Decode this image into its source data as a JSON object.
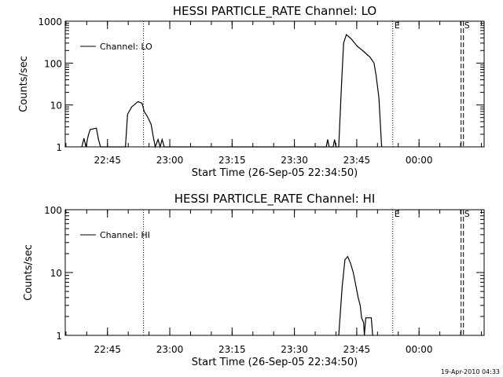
{
  "timestamp": "19-Apr-2010 04:33",
  "chart_data": [
    {
      "type": "line",
      "title": "HESSI PARTICLE_RATE Channel: LO",
      "xlabel": "Start Time (26-Sep-05 22:34:50)",
      "ylabel": "Counts/sec",
      "yscale": "log",
      "ylim": [
        1,
        1000
      ],
      "y_ticks": [
        1,
        10,
        100,
        1000
      ],
      "xlim": [
        "22:34:50",
        "00:15:40"
      ],
      "x_ticks": [
        "22:45",
        "23:00",
        "23:15",
        "23:30",
        "23:45",
        "00:00"
      ],
      "legend": "top-left",
      "series": [
        {
          "name": "Channel: LO",
          "points": [
            [
              "22:38:50",
              1
            ],
            [
              "22:39:20",
              1.6
            ],
            [
              "22:39:50",
              1
            ],
            [
              "22:40:20",
              1.8
            ],
            [
              "22:40:50",
              2.6
            ],
            [
              "22:42:20",
              2.8
            ],
            [
              "22:42:50",
              1.5
            ],
            [
              "22:43:20",
              1
            ],
            [
              "22:49:20",
              1
            ],
            [
              "22:49:50",
              6
            ],
            [
              "22:50:50",
              9
            ],
            [
              "22:52:20",
              12
            ],
            [
              "22:53:20",
              11
            ],
            [
              "22:53:50",
              7
            ],
            [
              "22:54:30",
              5.5
            ],
            [
              "22:55:30",
              3.5
            ],
            [
              "22:56:00",
              1.8
            ],
            [
              "22:56:30",
              1
            ],
            [
              "22:57:10",
              1.5
            ],
            [
              "22:57:40",
              1
            ],
            [
              "22:58:10",
              1.5
            ],
            [
              "22:58:40",
              1
            ],
            [
              "23:37:40",
              1
            ],
            [
              "23:38:00",
              1.5
            ],
            [
              "23:38:20",
              1
            ],
            [
              "23:39:20",
              1
            ],
            [
              "23:39:40",
              1.5
            ],
            [
              "23:40:00",
              1
            ],
            [
              "23:40:40",
              1
            ],
            [
              "23:41:20",
              30
            ],
            [
              "23:41:50",
              300
            ],
            [
              "23:42:30",
              480
            ],
            [
              "23:43:40",
              380
            ],
            [
              "23:45:10",
              250
            ],
            [
              "23:46:40",
              190
            ],
            [
              "23:48:10",
              140
            ],
            [
              "23:49:10",
              100
            ],
            [
              "23:49:40",
              50
            ],
            [
              "23:50:20",
              15
            ],
            [
              "23:51:00",
              1
            ]
          ]
        }
      ],
      "markers": [
        {
          "time": "22:53:40",
          "style": "dotted",
          "label": ""
        },
        {
          "time": "23:53:40",
          "style": "dotted",
          "label": "E"
        },
        {
          "time": "00:10:30",
          "style": "dashed",
          "label": "S"
        }
      ]
    },
    {
      "type": "line",
      "title": "HESSI PARTICLE_RATE Channel: HI",
      "xlabel": "Start Time (26-Sep-05 22:34:50)",
      "ylabel": "Counts/sec",
      "yscale": "log",
      "ylim": [
        1,
        100
      ],
      "y_ticks": [
        1,
        10,
        100
      ],
      "xlim": [
        "22:34:50",
        "00:15:40"
      ],
      "x_ticks": [
        "22:45",
        "23:00",
        "23:15",
        "23:30",
        "23:45",
        "00:00"
      ],
      "legend": "top-left",
      "series": [
        {
          "name": "Channel: HI",
          "points": [
            [
              "23:40:40",
              1
            ],
            [
              "23:41:30",
              6
            ],
            [
              "23:42:10",
              16
            ],
            [
              "23:42:50",
              18
            ],
            [
              "23:43:30",
              14
            ],
            [
              "23:44:10",
              10
            ],
            [
              "23:44:50",
              6
            ],
            [
              "23:45:20",
              4
            ],
            [
              "23:45:50",
              3
            ],
            [
              "23:46:10",
              1.9
            ],
            [
              "23:46:40",
              1.6
            ],
            [
              "23:46:50",
              1
            ],
            [
              "23:47:10",
              1.9
            ],
            [
              "23:48:30",
              1.9
            ],
            [
              "23:48:50",
              1
            ]
          ]
        }
      ],
      "markers": [
        {
          "time": "22:53:40",
          "style": "dotted",
          "label": ""
        },
        {
          "time": "23:53:40",
          "style": "dotted",
          "label": "E"
        },
        {
          "time": "00:10:30",
          "style": "dashed",
          "label": "S"
        }
      ]
    }
  ]
}
